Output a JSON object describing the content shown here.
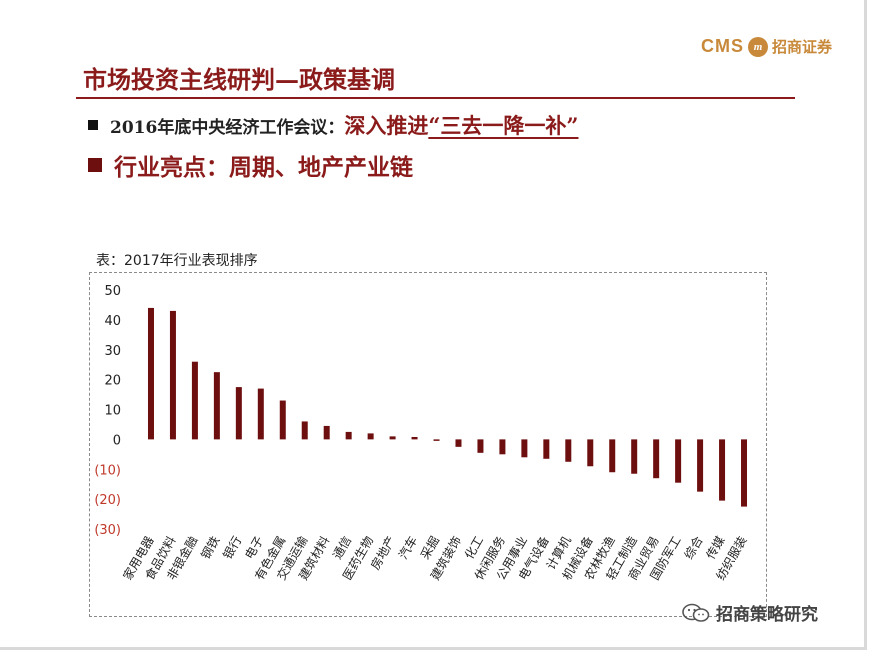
{
  "header": {
    "logo_cms": "CMS",
    "logo_badge": "m",
    "logo_cn": "招商证券",
    "title": "市场投资主线研判—政策基调"
  },
  "bullets": {
    "b1_prefix": "2016年底中央经济工作会议：",
    "b1_emph": "深入推进",
    "b1_quote": "“三去一降一补”",
    "b2": "行业亮点：周期、地产产业链"
  },
  "table_caption": "表：2017年行业表现排序",
  "watermark": {
    "text": "招商策略研究",
    "icon": "wechat-icon"
  },
  "colors": {
    "brand": "#8b1a1a",
    "bar": "#6e0f0f",
    "negative_tick": "#c0392b",
    "logo": "#c8893a"
  },
  "chart_data": {
    "type": "bar",
    "title": "",
    "xlabel": "",
    "ylabel": "",
    "ylim": [
      -30,
      50
    ],
    "yticks": [
      "50",
      "40",
      "30",
      "20",
      "10",
      "0",
      "(10)",
      "(20)",
      "(30)"
    ],
    "ytick_values": [
      50,
      40,
      30,
      20,
      10,
      0,
      -10,
      -20,
      -30
    ],
    "grid": false,
    "categories": [
      "家用电器",
      "食品饮料",
      "非银金融",
      "钢铁",
      "银行",
      "电子",
      "有色金属",
      "交通运输",
      "建筑材料",
      "通信",
      "医药生物",
      "房地产",
      "汽车",
      "采掘",
      "建筑装饰",
      "化工",
      "休闲服务",
      "公用事业",
      "电气设备",
      "计算机",
      "机械设备",
      "农林牧渔",
      "轻工制造",
      "商业贸易",
      "国防军工",
      "综合",
      "传媒",
      "纺织服装"
    ],
    "values": [
      44,
      43,
      26,
      22.5,
      17.5,
      17,
      13,
      6,
      4.5,
      2.5,
      2,
      1,
      0.8,
      -0.5,
      -2.5,
      -4.5,
      -5,
      -6,
      -6.5,
      -7.5,
      -9,
      -11,
      -11.5,
      -13,
      -14.5,
      -17.5,
      -20.5,
      -22.5
    ]
  }
}
